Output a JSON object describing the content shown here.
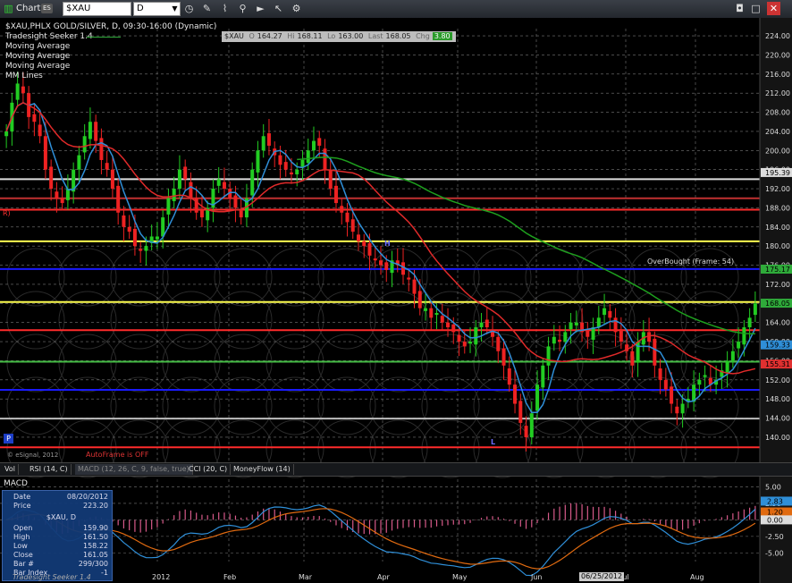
{
  "toolbar": {
    "chart_label": "Chart",
    "chart_badge": "ES",
    "symbol": "$XAU",
    "period": "D",
    "icons": [
      "chart-icon",
      "menu-icon",
      "clock-icon",
      "pencil-icon",
      "link-icon",
      "play-icon",
      "cursor-icon",
      "gear-icon"
    ]
  },
  "price_panel": {
    "title": "$XAU,PHLX GOLD/SILVER, D, 09:30-16:00 (Dynamic)",
    "studies": [
      {
        "label": "Tradesight Seeker 1.4",
        "color": "#2faa3a"
      },
      {
        "label": "Moving Average"
      },
      {
        "label": "Moving Average"
      },
      {
        "label": "Moving Average"
      },
      {
        "label": "MM Lines"
      }
    ],
    "ohlc": {
      "symbol": "$XAU",
      "o_label": "O",
      "o": "164.27",
      "h_label": "Hi",
      "h": "168.11",
      "l_label": "Lo",
      "l": "163.00",
      "c_label": "Last",
      "c": "168.05",
      "chg_label": "Chg",
      "chg": "3.80"
    },
    "overbought_label": "OverBought (Frame: 54)",
    "autoframe_label": "AutoFrame is OFF",
    "copyright": "© eSignal, 2012",
    "p_badge": "P",
    "h_marker": "H",
    "l_marker": "L",
    "r_marker": "R)"
  },
  "chart_data": [
    {
      "type": "candlestick",
      "title": "$XAU,PHLX GOLD/SILVER, D, 09:30-16:00 (Dynamic)",
      "yaxis_ticks": [
        224.0,
        220.0,
        216.0,
        212.0,
        208.0,
        204.0,
        200.0,
        196.0,
        192.0,
        188.0,
        184.0,
        180.0,
        176.0,
        172.0,
        168.0,
        164.0,
        160.0,
        156.0,
        152.0,
        148.0,
        144.0,
        140.0
      ],
      "ylim": [
        137.0,
        225.5
      ],
      "x_labels": [
        "2012",
        "Feb",
        "Mar",
        "Apr",
        "May",
        "Jun",
        "Jul",
        "Aug"
      ],
      "price_tags": [
        {
          "value": "195.39",
          "color": "#dddddd"
        },
        {
          "value": "175.17",
          "color": "#2faa3a"
        },
        {
          "value": "168.05",
          "color": "#2faa3a"
        },
        {
          "value": "159.33",
          "color": "#2f8fd8"
        },
        {
          "value": "155.31",
          "color": "#e03030"
        }
      ],
      "mm_lines": [
        {
          "value": 194.0,
          "color": "#dddddd"
        },
        {
          "value": 190.0,
          "color": "#c03030"
        },
        {
          "value": 187.6,
          "color": "#ff2b2b"
        },
        {
          "value": 181.0,
          "color": "#ffff50"
        },
        {
          "value": 175.2,
          "color": "#1a1aff"
        },
        {
          "value": 168.3,
          "color": "#ffff50"
        },
        {
          "value": 162.4,
          "color": "#ff2b2b"
        },
        {
          "value": 155.8,
          "color": "#44bb44"
        },
        {
          "value": 149.9,
          "color": "#1a1aff"
        },
        {
          "value": 143.9,
          "color": "#bbbbbb"
        },
        {
          "value": 137.9,
          "color": "#ff2b2b"
        }
      ],
      "close_series": [
        204,
        210,
        214,
        212,
        207,
        206,
        203,
        196,
        192,
        190,
        189,
        192,
        196,
        199,
        203,
        206,
        202,
        198,
        196,
        192,
        187,
        184,
        183,
        180,
        179,
        180,
        182,
        182,
        186,
        190,
        192,
        196,
        194,
        190,
        187,
        186,
        188,
        192,
        194,
        192,
        190,
        188,
        186,
        190,
        196,
        200,
        203,
        201,
        199,
        197,
        196,
        195,
        196,
        198,
        200,
        202,
        201,
        196,
        192,
        189,
        187,
        185,
        183,
        181,
        180,
        178,
        177,
        176,
        175,
        177,
        176,
        174,
        173,
        170,
        167,
        167,
        165,
        166,
        164,
        163,
        162,
        160,
        159,
        160,
        163,
        164,
        163,
        161,
        158,
        155,
        151,
        147,
        143,
        140,
        145,
        151,
        155,
        159,
        161,
        160,
        162,
        164,
        164,
        162,
        161,
        163,
        165,
        167,
        165,
        162,
        160,
        158,
        155,
        160,
        162,
        160,
        155,
        152,
        150,
        147,
        145,
        147,
        148,
        151,
        152,
        153,
        151,
        152,
        154,
        156,
        158,
        160,
        163,
        165,
        168
      ]
    },
    {
      "type": "line",
      "title": "MACD",
      "study_label": "MACD (12, 26, C, 9, false, true)",
      "yaxis_ticks": [
        5.0,
        2.5,
        0.0,
        -2.5,
        -5.0
      ],
      "ylim": [
        -6.3,
        6.0
      ],
      "price_tags": [
        {
          "value": "2.83",
          "color": "#2f8fd8"
        },
        {
          "value": "1.20",
          "color": "#e06a10"
        },
        {
          "value": "0.00",
          "color": "#dddddd"
        }
      ]
    }
  ],
  "indicator_tabs": [
    "Vol",
    "RSI (14, C)",
    "MACD (12, 26, C, 9, false, true)",
    "CCI (20, C)",
    "MoneyFlow (14)"
  ],
  "info_box": {
    "date_label": "Date",
    "date": "08/20/2012",
    "price_label": "Price",
    "price": "223.20",
    "symbol": "$XAU, D",
    "open_label": "Open",
    "open": "159.90",
    "high_label": "High",
    "high": "161.50",
    "low_label": "Low",
    "low": "158.22",
    "close_label": "Close",
    "close": "161.05",
    "bar_label": "Bar #",
    "bar": "299/300",
    "bar_index_label": "Bar Index",
    "bar_index": "-1",
    "footer": "Tradesight Seeker 1.4"
  },
  "cursor_date": "06/25/2012"
}
